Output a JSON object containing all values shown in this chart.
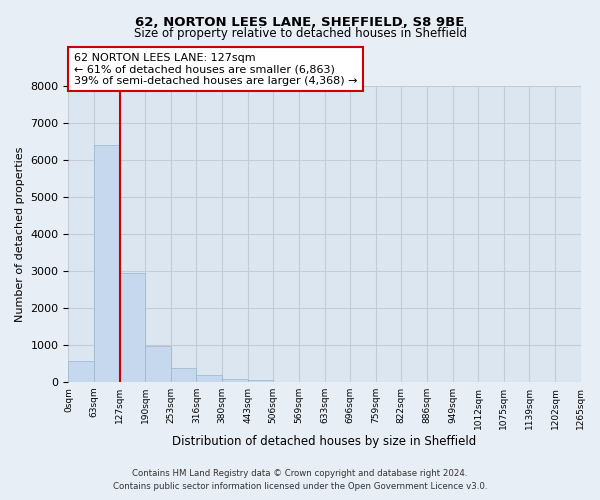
{
  "title_line1": "62, NORTON LEES LANE, SHEFFIELD, S8 9BE",
  "title_line2": "Size of property relative to detached houses in Sheffield",
  "xlabel": "Distribution of detached houses by size in Sheffield",
  "ylabel": "Number of detached properties",
  "bin_edges": [
    0,
    63,
    127,
    190,
    253,
    316,
    380,
    443,
    506,
    569,
    633,
    696,
    759,
    822,
    886,
    949,
    1012,
    1075,
    1139,
    1202,
    1265
  ],
  "bar_heights": [
    560,
    6400,
    2950,
    980,
    390,
    175,
    80,
    60,
    0,
    0,
    0,
    0,
    0,
    0,
    0,
    0,
    0,
    0,
    0,
    0
  ],
  "bar_color": "#c5d8ee",
  "property_line_x": 127,
  "property_line_color": "#cc0000",
  "annotation_text_line1": "62 NORTON LEES LANE: 127sqm",
  "annotation_text_line2": "← 61% of detached houses are smaller (6,863)",
  "annotation_text_line3": "39% of semi-detached houses are larger (4,368) →",
  "ylim": [
    0,
    8000
  ],
  "yticks": [
    0,
    1000,
    2000,
    3000,
    4000,
    5000,
    6000,
    7000,
    8000
  ],
  "tick_labels": [
    "0sqm",
    "63sqm",
    "127sqm",
    "190sqm",
    "253sqm",
    "316sqm",
    "380sqm",
    "443sqm",
    "506sqm",
    "569sqm",
    "633sqm",
    "696sqm",
    "759sqm",
    "822sqm",
    "886sqm",
    "949sqm",
    "1012sqm",
    "1075sqm",
    "1139sqm",
    "1202sqm",
    "1265sqm"
  ],
  "footer_line1": "Contains HM Land Registry data © Crown copyright and database right 2024.",
  "footer_line2": "Contains public sector information licensed under the Open Government Licence v3.0.",
  "bg_color": "#e8eef5",
  "plot_bg_color": "#dce6f0",
  "grid_color": "#c0ccd8"
}
